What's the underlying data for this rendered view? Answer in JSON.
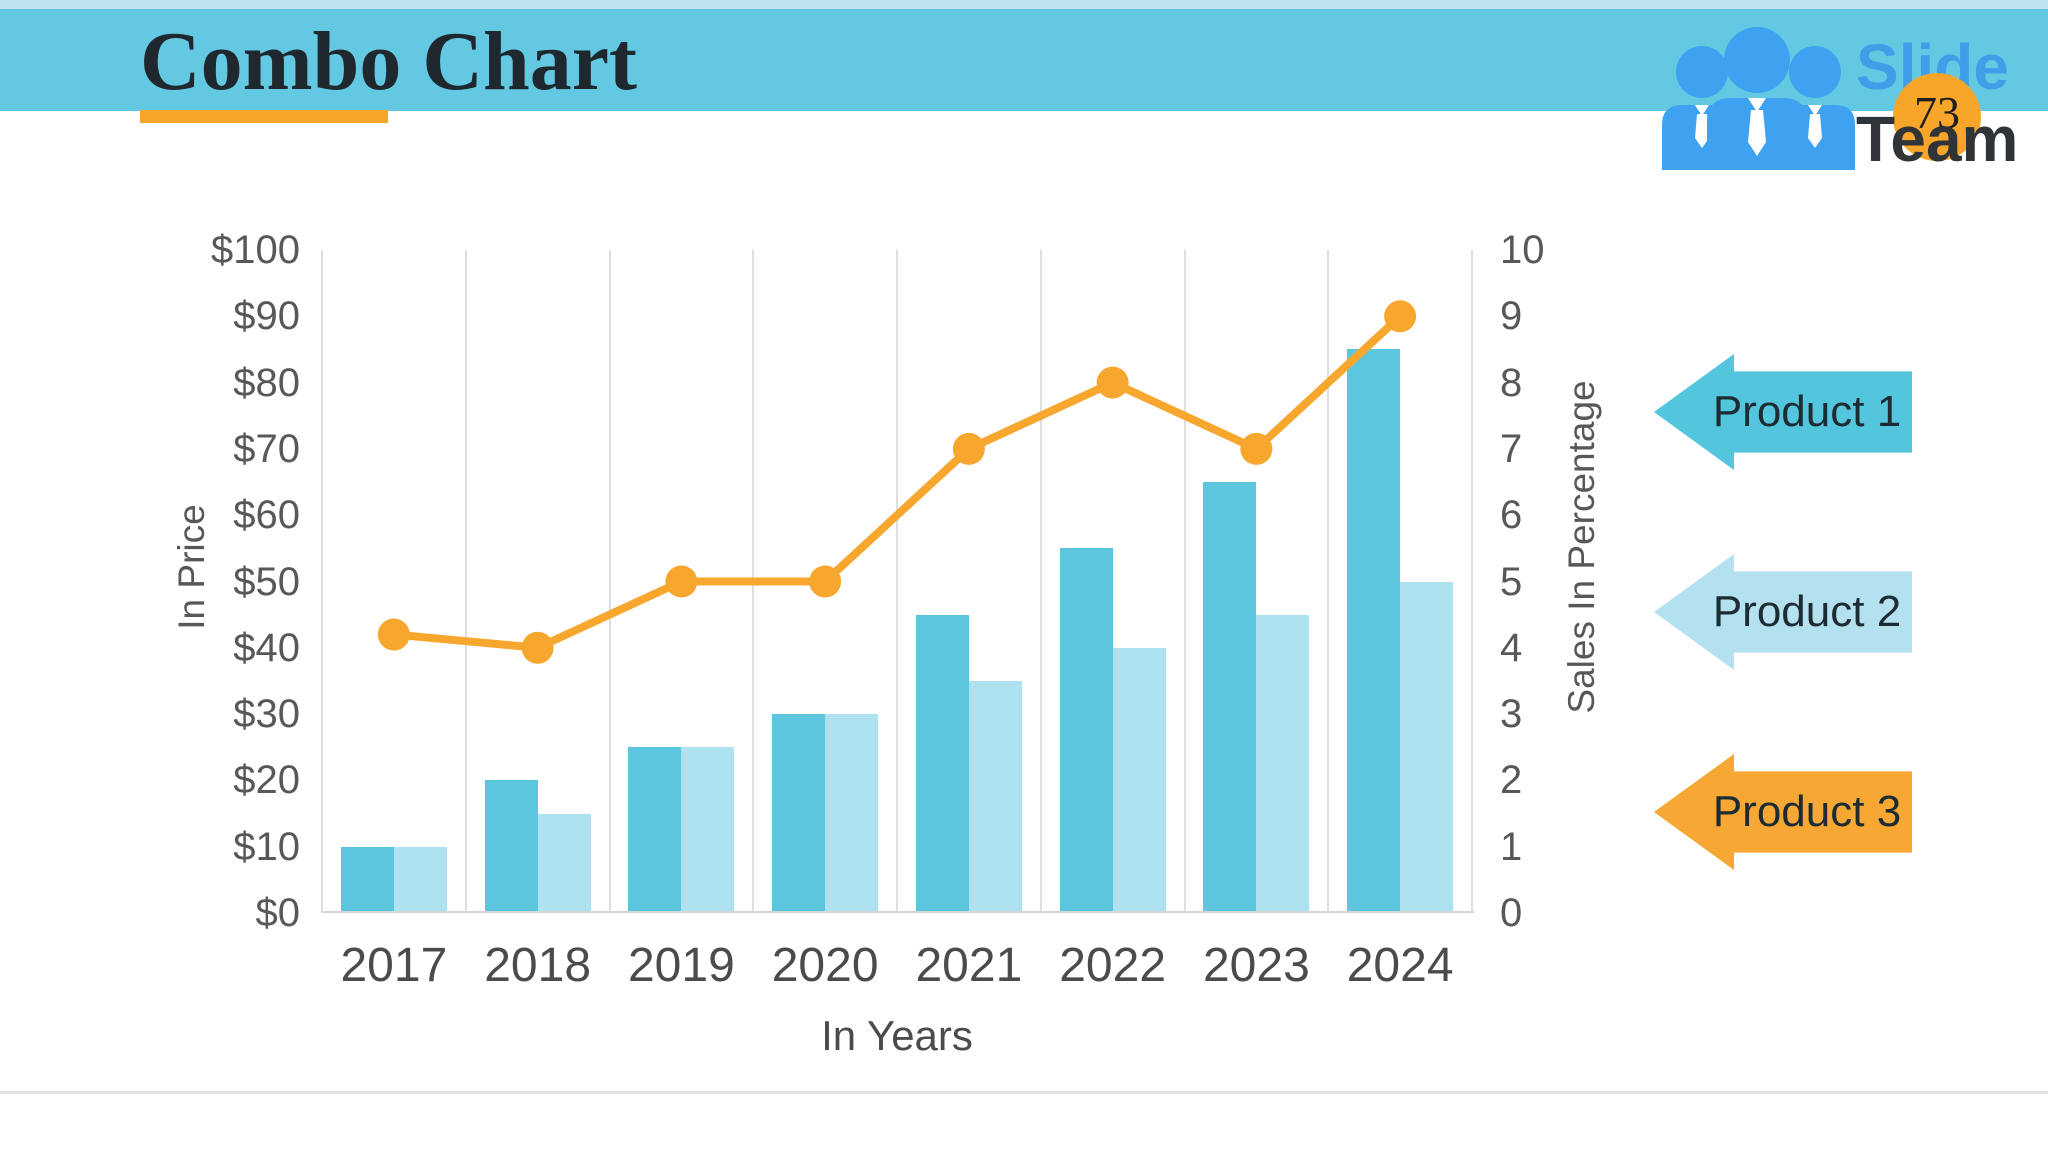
{
  "slide": {
    "title": "Combo Chart",
    "page_number": "73"
  },
  "logo": {
    "line1": "Slide",
    "line2": "Team"
  },
  "colors": {
    "header_band": "#63C9E2",
    "header_strip": "#BEE4F1",
    "accent_orange": "#F7A62A",
    "bar_dark_teal": "#5BC6DE",
    "bar_light_blue": "#AEE2F1",
    "line_orange": "#F7A72E",
    "axis_text": "#57585A",
    "gridline": "#DDDEDF"
  },
  "chart_data": {
    "type": "combo (bar + line)",
    "categories": [
      "2017",
      "2018",
      "2019",
      "2020",
      "2021",
      "2022",
      "2023",
      "2024"
    ],
    "series": [
      {
        "name": "Product 1",
        "type": "bar",
        "axis": "left",
        "color": "#5BC6DE",
        "values": [
          10,
          20,
          25,
          30,
          45,
          55,
          65,
          85
        ]
      },
      {
        "name": "Product 2",
        "type": "bar",
        "axis": "left",
        "color": "#AEE2F1",
        "values": [
          10,
          15,
          25,
          30,
          35,
          40,
          45,
          50
        ]
      },
      {
        "name": "Product 3",
        "type": "line",
        "axis": "right",
        "color": "#F7A72E",
        "values": [
          4.2,
          4,
          5,
          5,
          7,
          8,
          7,
          9
        ]
      }
    ],
    "left_axis": {
      "label": "In Price",
      "min": 0,
      "max": 100,
      "ticks": [
        "$0",
        "$10",
        "$20",
        "$30",
        "$40",
        "$50",
        "$60",
        "$70",
        "$80",
        "$90",
        "$100"
      ]
    },
    "right_axis": {
      "label": "Sales In Percentage",
      "min": 0,
      "max": 10,
      "ticks": [
        "0",
        "1",
        "2",
        "3",
        "4",
        "5",
        "6",
        "7",
        "8",
        "9",
        "10"
      ]
    },
    "x_axis": {
      "label": "In Years"
    },
    "grid": "vertical category separators only",
    "legend_position": "right, arrow-shaped labels"
  },
  "legend": [
    {
      "label": "Product 1",
      "color": "#53C5DD"
    },
    {
      "label": "Product 2",
      "color": "#B4E1EF"
    },
    {
      "label": "Product 3",
      "color": "#F7A734"
    }
  ]
}
